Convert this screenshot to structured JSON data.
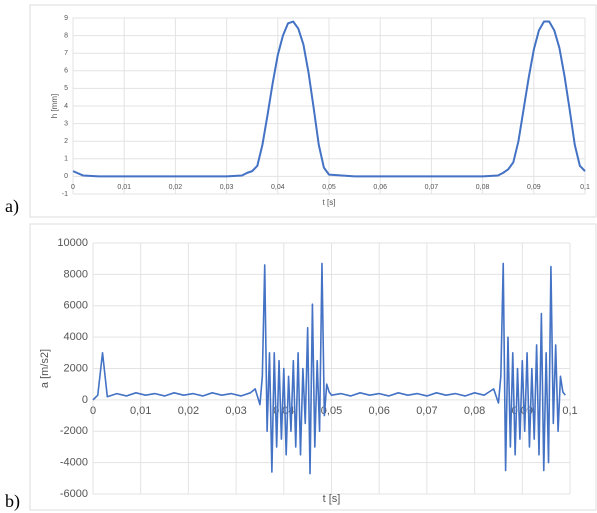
{
  "chart_data": [
    {
      "type": "line",
      "label": "a)",
      "xlabel": "t [s]",
      "ylabel": "h [mm]",
      "grid": true,
      "xlim": [
        0,
        0.1
      ],
      "ylim": [
        -1,
        9
      ],
      "xticks": [
        0,
        {
          "value": 0.01,
          "label": "0,01"
        },
        {
          "value": 0.02,
          "label": "0,02"
        },
        {
          "value": 0.03,
          "label": "0,03"
        },
        {
          "value": 0.04,
          "label": "0,04"
        },
        {
          "value": 0.05,
          "label": "0,05"
        },
        {
          "value": 0.06,
          "label": "0,06"
        },
        {
          "value": 0.07,
          "label": "0,07"
        },
        {
          "value": 0.08,
          "label": "0,08"
        },
        {
          "value": 0.09,
          "label": "0,09"
        },
        {
          "value": 0.1,
          "label": "0,1"
        }
      ],
      "yticks": [
        -1,
        0,
        1,
        2,
        3,
        4,
        5,
        6,
        7,
        8,
        9
      ],
      "x": [
        0,
        0.002,
        0.005,
        0.01,
        0.015,
        0.02,
        0.025,
        0.03,
        0.033,
        0.034,
        0.035,
        0.036,
        0.037,
        0.038,
        0.039,
        0.04,
        0.041,
        0.042,
        0.043,
        0.044,
        0.045,
        0.046,
        0.047,
        0.048,
        0.049,
        0.05,
        0.055,
        0.06,
        0.065,
        0.07,
        0.075,
        0.08,
        0.083,
        0.084,
        0.085,
        0.086,
        0.087,
        0.088,
        0.089,
        0.09,
        0.091,
        0.092,
        0.093,
        0.094,
        0.095,
        0.096,
        0.097,
        0.098,
        0.099,
        0.1
      ],
      "series": [
        {
          "name": "h",
          "color": "#4472c4",
          "values": [
            0.3,
            0.05,
            0,
            0,
            0,
            0,
            0,
            0,
            0.05,
            0.2,
            0.3,
            0.6,
            1.8,
            3.5,
            5.3,
            6.9,
            8.0,
            8.7,
            8.8,
            8.4,
            7.5,
            5.9,
            3.9,
            1.8,
            0.5,
            0.1,
            0,
            0,
            0,
            0,
            0,
            0,
            0.05,
            0.2,
            0.4,
            0.8,
            2.0,
            3.8,
            5.6,
            7.2,
            8.3,
            8.8,
            8.8,
            8.3,
            7.3,
            5.7,
            3.8,
            1.8,
            0.6,
            0.3
          ]
        }
      ]
    },
    {
      "type": "line",
      "label": "b)",
      "xlabel": "t [s]",
      "ylabel": "a [m/s2]",
      "grid": true,
      "xlim": [
        0,
        0.1
      ],
      "ylim": [
        -6000,
        10000
      ],
      "xticks": [
        0,
        {
          "value": 0.01,
          "label": "0,01"
        },
        {
          "value": 0.02,
          "label": "0,02"
        },
        {
          "value": 0.03,
          "label": "0,03"
        },
        {
          "value": 0.04,
          "label": "0,04"
        },
        {
          "value": 0.05,
          "label": "0,05"
        },
        {
          "value": 0.06,
          "label": "0,06"
        },
        {
          "value": 0.07,
          "label": "0,07"
        },
        {
          "value": 0.08,
          "label": "0,08"
        },
        {
          "value": 0.09,
          "label": "0,09"
        },
        {
          "value": 0.1,
          "label": "0,1"
        }
      ],
      "yticks": [
        -6000,
        -4000,
        -2000,
        0,
        2000,
        4000,
        6000,
        8000,
        10000
      ],
      "x": [
        0,
        0.001,
        0.002,
        0.003,
        0.005,
        0.007,
        0.009,
        0.011,
        0.013,
        0.015,
        0.017,
        0.019,
        0.021,
        0.023,
        0.025,
        0.027,
        0.029,
        0.031,
        0.033,
        0.034,
        0.035,
        0.0355,
        0.036,
        0.0365,
        0.037,
        0.0375,
        0.038,
        0.0385,
        0.039,
        0.0395,
        0.04,
        0.0405,
        0.041,
        0.0415,
        0.042,
        0.0425,
        0.043,
        0.0435,
        0.044,
        0.0445,
        0.045,
        0.0455,
        0.046,
        0.0465,
        0.047,
        0.0475,
        0.048,
        0.0485,
        0.049,
        0.0495,
        0.05,
        0.052,
        0.054,
        0.056,
        0.058,
        0.06,
        0.062,
        0.064,
        0.066,
        0.068,
        0.07,
        0.072,
        0.074,
        0.076,
        0.078,
        0.08,
        0.082,
        0.084,
        0.085,
        0.0855,
        0.086,
        0.0865,
        0.087,
        0.0875,
        0.088,
        0.0885,
        0.089,
        0.0895,
        0.09,
        0.0905,
        0.091,
        0.0915,
        0.092,
        0.0925,
        0.093,
        0.0935,
        0.094,
        0.0945,
        0.095,
        0.0955,
        0.096,
        0.0965,
        0.097,
        0.0975,
        0.098,
        0.0985,
        0.099
      ],
      "series": [
        {
          "name": "a",
          "color": "#4472c4",
          "values": [
            0,
            300,
            3000,
            200,
            400,
            250,
            450,
            300,
            400,
            250,
            450,
            300,
            400,
            250,
            450,
            300,
            400,
            250,
            450,
            700,
            -300,
            1500,
            8600,
            -2000,
            3000,
            -4600,
            3000,
            -3000,
            2500,
            -2500,
            2000,
            -3500,
            1500,
            -2000,
            2500,
            -3000,
            3000,
            -3500,
            2000,
            -1500,
            4600,
            -4700,
            6100,
            -3000,
            2500,
            -2000,
            8700,
            -1000,
            1000,
            500,
            300,
            400,
            250,
            450,
            300,
            400,
            250,
            450,
            300,
            400,
            250,
            450,
            300,
            400,
            250,
            450,
            300,
            700,
            -200,
            1500,
            8700,
            -4500,
            4000,
            -3000,
            3000,
            -3500,
            2000,
            -2500,
            2500,
            -2000,
            3000,
            -3000,
            2000,
            -2500,
            3500,
            -3500,
            5500,
            -4500,
            3000,
            -4000,
            8500,
            -1500,
            3500,
            -2000,
            1500,
            500,
            300
          ]
        }
      ]
    }
  ]
}
